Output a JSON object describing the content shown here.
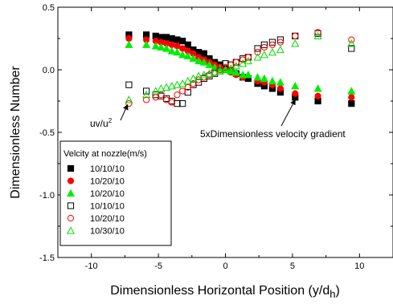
{
  "chart_data": {
    "type": "scatter",
    "xlabel": "Dimensionless Horizontal Position (y/d",
    "xlabel_sub": "h",
    "xlabel_close": ")",
    "ylabel": "Dimensionless Number",
    "xlim": [
      -12.5,
      12.5
    ],
    "ylim": [
      -1.5,
      0.5
    ],
    "grid": false,
    "x_ticks": [
      {
        "value": -10,
        "label": "-10"
      },
      {
        "value": -5,
        "label": "-5"
      },
      {
        "value": 0,
        "label": "0"
      },
      {
        "value": 5,
        "label": "5"
      },
      {
        "value": 10,
        "label": "10"
      }
    ],
    "y_ticks": [
      {
        "value": 0.5,
        "label": "0.5"
      },
      {
        "value": 0.0,
        "label": "0.0"
      },
      {
        "value": -0.5,
        "label": "-0.5"
      },
      {
        "value": -1.0,
        "label": "-1.0"
      },
      {
        "value": -1.5,
        "label": "-1.5"
      }
    ],
    "legend": {
      "title": "Velcity at nozzle(m/s)",
      "placement": "bottom-left"
    },
    "annotations": {
      "uv": {
        "text": "uv/u",
        "sup": "2",
        "arrow_to": [
          -7.3,
          -0.28
        ]
      },
      "grad": {
        "text": "5xDimensionless velocity gradient",
        "arrow_to": [
          5.2,
          -0.24
        ]
      }
    },
    "series": [
      {
        "name": "10/10/10",
        "marker": "square",
        "color": "#000000",
        "filled": true,
        "x": [
          -7.2,
          -5.9,
          -5.2,
          -4.8,
          -4.4,
          -4.0,
          -3.6,
          -3.2,
          -2.8,
          -2.4,
          -2.0,
          -1.6,
          -1.2,
          -0.8,
          -0.4,
          0.0,
          0.4,
          0.8,
          1.3,
          1.7,
          2.4,
          2.9,
          3.5,
          4.1,
          5.2,
          6.9,
          9.4
        ],
        "y": [
          0.28,
          0.28,
          0.27,
          0.26,
          0.26,
          0.25,
          0.24,
          0.23,
          0.2,
          0.16,
          0.14,
          0.13,
          0.09,
          0.06,
          0.04,
          0.01,
          -0.01,
          -0.03,
          -0.06,
          -0.07,
          -0.11,
          -0.13,
          -0.15,
          -0.18,
          -0.22,
          -0.25,
          -0.27
        ]
      },
      {
        "name": "10/20/10",
        "marker": "circle",
        "color": "#ff0000",
        "filled": true,
        "x": [
          -7.2,
          -5.9,
          -5.2,
          -4.8,
          -4.4,
          -4.0,
          -3.6,
          -3.2,
          -2.8,
          -2.4,
          -2.0,
          -1.6,
          -1.2,
          -0.8,
          -0.4,
          0.0,
          0.4,
          0.8,
          1.3,
          2.4,
          2.9,
          3.5,
          4.1,
          5.2,
          6.9,
          9.4
        ],
        "y": [
          0.25,
          0.24,
          0.23,
          0.22,
          0.21,
          0.2,
          0.19,
          0.17,
          0.15,
          0.13,
          0.1,
          0.08,
          0.06,
          0.04,
          0.02,
          0.0,
          -0.02,
          -0.04,
          -0.06,
          -0.09,
          -0.1,
          -0.12,
          -0.15,
          -0.19,
          -0.21,
          -0.22
        ]
      },
      {
        "name": "10/20/10",
        "marker": "triangle",
        "color": "#00ee00",
        "filled": true,
        "x": [
          -7.2,
          -5.9,
          -5.2,
          -4.8,
          -4.4,
          -4.0,
          -3.6,
          -3.2,
          -2.8,
          -2.4,
          -2.0,
          -1.6,
          -1.2,
          -0.8,
          -0.4,
          0.0,
          0.4,
          0.8,
          1.3,
          1.7,
          2.4,
          2.9,
          3.5,
          4.1,
          5.2,
          6.9,
          9.4
        ],
        "y": [
          0.2,
          0.2,
          0.19,
          0.18,
          0.17,
          0.15,
          0.14,
          0.12,
          0.11,
          0.09,
          0.07,
          0.06,
          0.04,
          0.02,
          0.01,
          0.0,
          -0.01,
          -0.02,
          -0.04,
          -0.04,
          -0.06,
          -0.07,
          -0.09,
          -0.1,
          -0.13,
          -0.15,
          -0.17
        ]
      },
      {
        "name": "10/10/10",
        "marker": "square",
        "color": "#000000",
        "filled": false,
        "x": [
          -7.2,
          -5.9,
          -5.2,
          -4.8,
          -4.4,
          -4.0,
          -3.6,
          -3.2,
          -2.8,
          -2.4,
          -2.0,
          -1.6,
          -1.2,
          -0.8,
          -0.4,
          0.0,
          0.4,
          0.8,
          1.3,
          1.7,
          2.4,
          2.9,
          3.5,
          4.1,
          5.2,
          6.9,
          9.4
        ],
        "y": [
          -0.12,
          -0.17,
          -0.2,
          -0.21,
          -0.23,
          -0.25,
          -0.27,
          -0.27,
          -0.18,
          -0.12,
          -0.1,
          -0.07,
          -0.05,
          -0.03,
          -0.01,
          0.05,
          0.04,
          0.06,
          0.09,
          0.1,
          0.17,
          0.2,
          0.22,
          0.24,
          0.27,
          0.29,
          0.17
        ]
      },
      {
        "name": "10/20/10",
        "marker": "circle",
        "color": "#ff0000",
        "filled": false,
        "x": [
          -7.2,
          -5.9,
          -5.2,
          -4.8,
          -4.4,
          -4.0,
          -3.6,
          -3.2,
          -2.8,
          -2.4,
          -2.0,
          -1.6,
          -1.2,
          -0.8,
          -0.4,
          0.0,
          0.4,
          0.8,
          1.3,
          1.7,
          2.4,
          2.9,
          3.5,
          4.1,
          5.2,
          6.9,
          9.4
        ],
        "y": [
          -0.27,
          -0.24,
          -0.22,
          -0.2,
          -0.24,
          -0.26,
          -0.2,
          -0.17,
          -0.14,
          -0.11,
          -0.08,
          -0.06,
          -0.04,
          -0.02,
          0.0,
          0.02,
          0.04,
          0.06,
          0.08,
          0.1,
          0.14,
          0.18,
          0.2,
          0.22,
          0.27,
          0.3,
          0.24
        ]
      },
      {
        "name": "10/30/10",
        "marker": "triangle",
        "color": "#00dd00",
        "filled": false,
        "x": [
          -7.2,
          -5.9,
          -5.2,
          -4.8,
          -4.4,
          -4.0,
          -3.6,
          -3.2,
          -2.8,
          -2.4,
          -2.0,
          -1.6,
          -1.2,
          -0.8,
          -0.4,
          0.0,
          0.4,
          0.8,
          1.3,
          1.7,
          2.4,
          2.9,
          3.5,
          4.1,
          5.2,
          6.9,
          9.4
        ],
        "y": [
          -0.24,
          -0.2,
          -0.17,
          -0.15,
          -0.14,
          -0.13,
          -0.12,
          -0.11,
          -0.09,
          -0.07,
          -0.05,
          -0.04,
          -0.03,
          -0.02,
          -0.01,
          0.0,
          0.01,
          0.03,
          0.05,
          0.07,
          0.1,
          0.12,
          0.14,
          0.16,
          0.21,
          0.27,
          0.21
        ]
      }
    ]
  }
}
